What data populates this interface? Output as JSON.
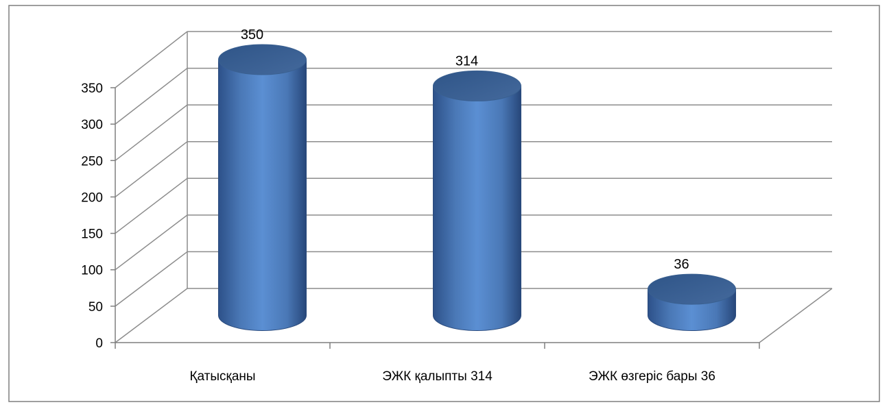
{
  "chart_data": {
    "type": "bar",
    "style": "3d-cylinder",
    "categories": [
      "Қатысқаны",
      "ЭЖК қалыпты 314",
      "ЭЖК өзгеріс бары 36"
    ],
    "values": [
      350,
      314,
      36
    ],
    "data_labels": [
      "350",
      "314",
      "36"
    ],
    "title": "",
    "xlabel": "",
    "ylabel": "",
    "ylim": [
      0,
      350
    ],
    "yticks": [
      "0",
      "50",
      "100",
      "150",
      "200",
      "250",
      "300",
      "350"
    ],
    "grid": true,
    "legend": "none",
    "colors": {
      "bar": "#4f81bd",
      "bar_dark": "#2d5189",
      "bar_top": "#3b6396",
      "grid": "#8c8c8c",
      "frame": "#7f7f7f",
      "text": "#000000"
    }
  }
}
